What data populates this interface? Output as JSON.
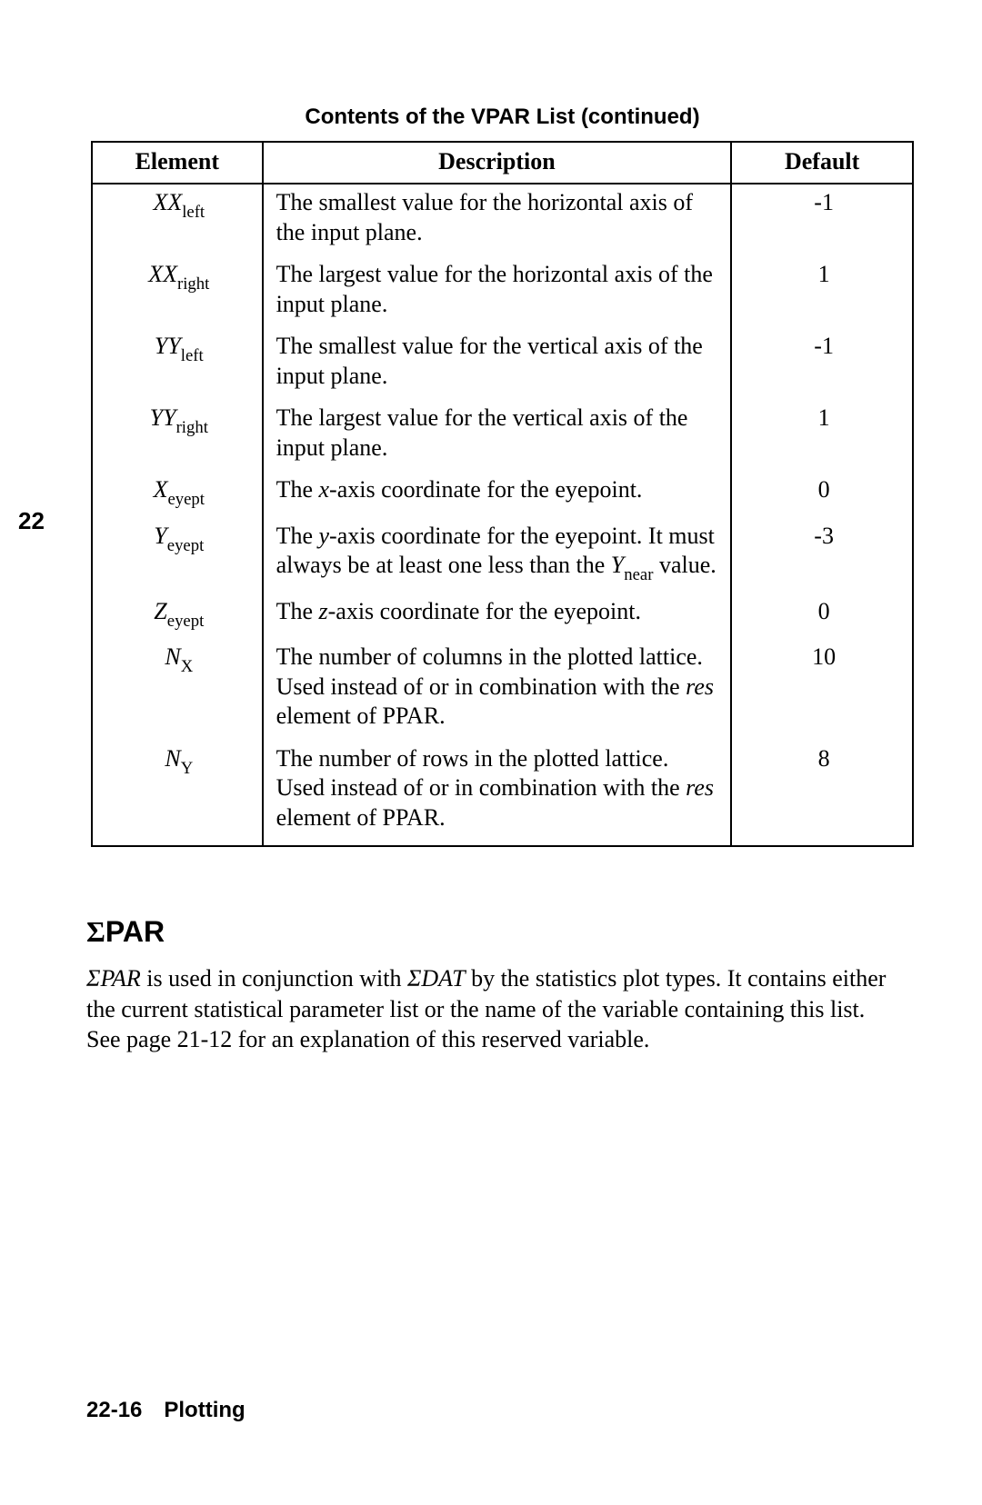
{
  "page": {
    "tab_number": "22",
    "table_title": "Contents of the VPAR List (continued)",
    "columns": {
      "element": "Element",
      "description": "Description",
      "default": "Default"
    },
    "rows": [
      {
        "elem_main": "XX",
        "elem_sub": "left",
        "desc_html": "The smallest value for the horizontal axis of the input plane.",
        "default": "-1"
      },
      {
        "elem_main": "XX",
        "elem_sub": "right",
        "desc_html": "The largest value for the horizontal axis of the input plane.",
        "default": "1"
      },
      {
        "elem_main": "YY",
        "elem_sub": "left",
        "desc_html": "The smallest value for the vertical axis of the input plane.",
        "default": "-1"
      },
      {
        "elem_main": "YY",
        "elem_sub": "right",
        "desc_html": "The largest value for the vertical axis of the input plane.",
        "default": "1"
      },
      {
        "elem_main": "X",
        "elem_sub": "eyept",
        "desc_html": "The <span class=\"ital\">x</span>-axis coordinate for the eyepoint.",
        "default": "0"
      },
      {
        "elem_main": "Y",
        "elem_sub": "eyept",
        "desc_html": "The <span class=\"ital\">y</span>-axis coordinate for the eyepoint. It must always be at least one less than the <span class=\"ital\">Y</span><span class=\"subsc\">near</span> value.",
        "default": "-3"
      },
      {
        "elem_main": "Z",
        "elem_sub": "eyept",
        "desc_html": "The <span class=\"ital\">z</span>-axis coordinate for the eyepoint.",
        "default": "0"
      },
      {
        "elem_main": "N",
        "elem_sub": "X",
        "desc_html": "The number of columns in the plotted lattice. Used instead of or in combination with the <span class=\"ital\">res</span> element of PPAR.",
        "default": "10"
      },
      {
        "elem_main": "N",
        "elem_sub": "Y",
        "desc_html": "The number of rows in the plotted lattice. Used instead of or in combination with the <span class=\"ital\">res</span> element of PPAR.",
        "default": "8"
      }
    ],
    "section": {
      "heading_sigma": "Σ",
      "heading_text": "PAR",
      "body_html": "<span class=\"ital\">ΣPAR</span> is used in conjunction with <span class=\"ital\">ΣDAT</span> by the statistics plot types. It contains either the current statistical parameter list or the name of the variable containing this list. See page 21-12 for an explanation of this reserved variable."
    },
    "footer": "22-16 Plotting"
  }
}
